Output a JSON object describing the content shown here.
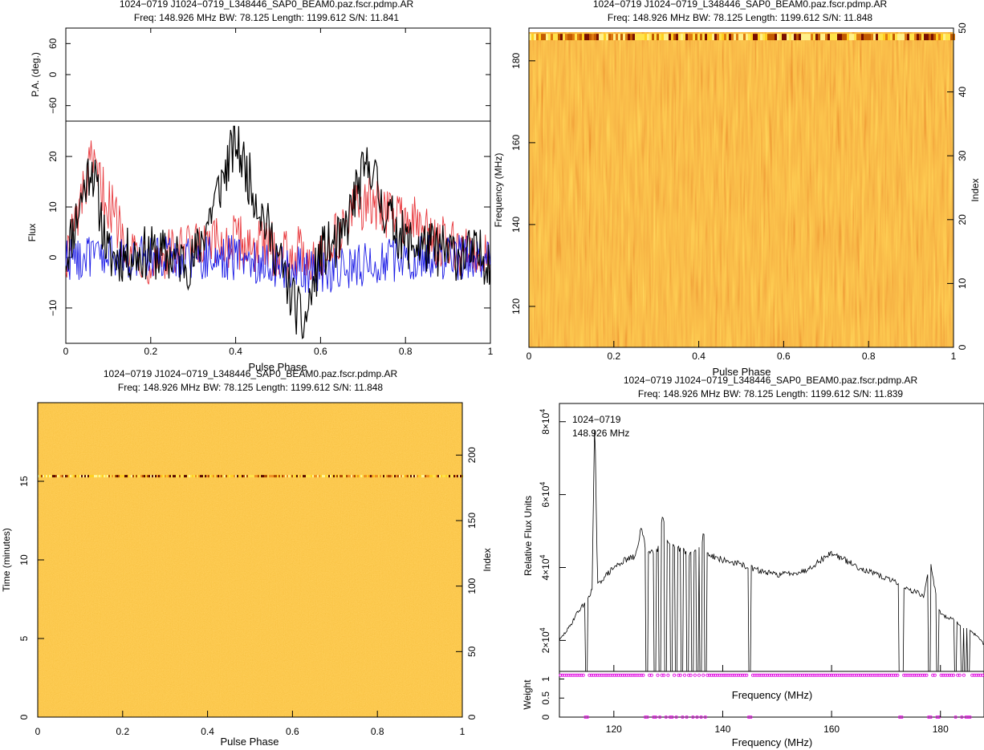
{
  "panels": {
    "tl": {
      "title": "1024−0719 J1024−0719_L348446_SAP0_BEAM0.paz.fscr.pdmp.AR",
      "subtitle": "Freq: 148.926 MHz BW: 78.125 Length: 1199.612 S/N: 11.841",
      "pa_ylabel": "P.A. (deg.)",
      "pa_ticks": [
        "60",
        "0",
        "−60"
      ],
      "flux_ylabel": "Flux",
      "flux_ticks": [
        "20",
        "10",
        "0",
        "−10"
      ],
      "xlabel": "Pulse Phase",
      "xticks": [
        "0",
        "0.2",
        "0.4",
        "0.6",
        "0.8",
        "1"
      ]
    },
    "tr": {
      "title": "1024−0719 J1024−0719_L348446_SAP0_BEAM0.paz.fscr.pdmp.AR",
      "subtitle": "Freq: 148.926 MHz BW: 78.125 Length: 1199.612 S/N: 11.848",
      "ylabel": "Frequency (MHz)",
      "yticks": [
        "120",
        "140",
        "160",
        "180"
      ],
      "y2label": "Index",
      "y2ticks": [
        "0",
        "10",
        "20",
        "30",
        "40",
        "50"
      ],
      "xlabel": "Pulse Phase",
      "xticks": [
        "0",
        "0.2",
        "0.4",
        "0.6",
        "0.8",
        "1"
      ]
    },
    "bl": {
      "title": "1024−0719 J1024−0719_L348446_SAP0_BEAM0.paz.fscr.pdmp.AR",
      "subtitle": "Freq: 148.926 MHz BW: 78.125 Length: 1199.612 S/N: 11.848",
      "ylabel": "Time (minutes)",
      "yticks": [
        "0",
        "5",
        "10",
        "15"
      ],
      "y2label": "Index",
      "y2ticks": [
        "0",
        "50",
        "100",
        "150",
        "200"
      ],
      "xlabel": "Pulse Phase",
      "xticks": [
        "0",
        "0.2",
        "0.4",
        "0.6",
        "0.8",
        "1"
      ]
    },
    "br": {
      "title": "1024−0719 J1024−0719_L348446_SAP0_BEAM0.paz.fscr.pdmp.AR",
      "subtitle": "Freq: 148.926 MHz BW: 78.125 Length: 1199.612 S/N: 11.839",
      "annot_line1": "1024−0719",
      "annot_line2": "148.926 MHz",
      "ylabel": "Relative Flux Units",
      "wlabel": "Weight",
      "wticks": [
        "0",
        "0.5",
        "1"
      ],
      "inner_xlabel": "Frequency (MHz)",
      "xlabel": "Frequency (MHz)",
      "xticks": [
        "120",
        "140",
        "160",
        "180"
      ]
    }
  },
  "colors": {
    "axis": "#000000",
    "stokes_i": "#000000",
    "stokes_l": "#e8383d",
    "stokes_v": "#1a1ae6",
    "weights": "#e000e0",
    "heat_low": "#8b0000",
    "heat_mid": "#e07a10",
    "heat_high": "#ffe34a"
  },
  "chart_data": [
    {
      "type": "line",
      "title": "1024−0719 J1024−0719_L348446_SAP0_BEAM0.paz.fscr.pdmp.AR",
      "xlabel": "Pulse Phase",
      "ylabel": "Flux",
      "xlim": [
        0,
        1
      ],
      "ylim": [
        -17,
        27
      ],
      "series": [
        {
          "key": "I",
          "color": "#000000",
          "x": [
            0,
            0.06,
            0.1,
            0.2,
            0.3,
            0.4,
            0.5,
            0.56,
            0.6,
            0.65,
            0.68,
            0.7,
            0.72,
            0.74,
            0.8,
            0.9,
            1.0
          ],
          "values": [
            0,
            19,
            0,
            1,
            -1,
            23,
            0,
            -14,
            1,
            3,
            12,
            16,
            19,
            11,
            3,
            1,
            0
          ]
        },
        {
          "key": "L",
          "color": "#e8383d",
          "x": [
            0,
            0.06,
            0.15,
            0.2,
            0.4,
            0.6,
            0.7,
            0.8,
            0.9,
            1.0
          ],
          "values": [
            0,
            18,
            2,
            0,
            3,
            0,
            11,
            8,
            2,
            0
          ]
        },
        {
          "key": "V",
          "color": "#1a1ae6",
          "x": [
            0,
            0.2,
            0.4,
            0.6,
            0.8,
            1.0
          ],
          "values": [
            0,
            0,
            0,
            -3,
            0,
            0
          ]
        }
      ],
      "pa_ylim": [
        -90,
        90
      ]
    },
    {
      "type": "heatmap",
      "title": "1024−0719 J1024−0719_L348446_SAP0_BEAM0.paz.fscr.pdmp.AR",
      "xlabel": "Pulse Phase",
      "ylabel": "Frequency (MHz)",
      "xlim": [
        0,
        1
      ],
      "ylim": [
        110,
        188
      ],
      "y2lim": [
        0,
        50
      ],
      "bright_channel_index": 48
    },
    {
      "type": "heatmap",
      "title": "1024−0719 J1024−0719_L348446_SAP0_BEAM0.paz.fscr.pdmp.AR",
      "xlabel": "Pulse Phase",
      "ylabel": "Time (minutes)",
      "xlim": [
        0,
        1
      ],
      "ylim": [
        0,
        20
      ],
      "y2lim": [
        0,
        240
      ],
      "bright_subint_minutes": 15.3
    },
    {
      "type": "line",
      "title": "1024−0719 J1024−0719_L348446_SAP0_BEAM0.paz.fscr.pdmp.AR",
      "xlabel": "Frequency (MHz)",
      "ylabel": "Relative Flux Units",
      "xlim": [
        110,
        188
      ],
      "ylim": [
        11500,
        85000
      ],
      "bandpass_x": [
        110,
        112,
        113,
        114,
        115,
        116,
        116.5,
        117,
        118,
        120,
        122,
        124,
        125,
        126,
        128,
        129,
        130,
        132,
        134,
        136,
        136.5,
        137,
        140,
        143,
        145,
        147,
        150,
        155,
        160,
        165,
        170,
        172,
        173,
        174,
        176,
        177,
        178,
        180,
        182,
        184,
        186,
        188
      ],
      "bandpass_y": [
        20000,
        24000,
        27000,
        29000,
        31000,
        34000,
        81000,
        35000,
        37000,
        40000,
        42000,
        43000,
        51000,
        44000,
        45000,
        55000,
        46000,
        45000,
        44000,
        45000,
        50000,
        44000,
        42000,
        41000,
        40000,
        39000,
        38000,
        39000,
        44000,
        40000,
        37000,
        36000,
        35000,
        34000,
        33000,
        32000,
        42000,
        27000,
        26000,
        24000,
        22000,
        19000
      ],
      "notched_mhz": [
        115.0,
        126.0,
        127.5,
        128.5,
        129.5,
        130.5,
        131.5,
        132.5,
        133.5,
        134.5,
        135.3,
        136.0,
        136.8,
        145.0,
        172.5,
        173.0,
        178.0,
        179.5,
        182.7,
        184.0,
        184.6,
        185.2
      ],
      "weights_ylim": [
        0,
        1.2
      ],
      "weights_normal": 1.1,
      "weights_flagged": 0
    }
  ]
}
